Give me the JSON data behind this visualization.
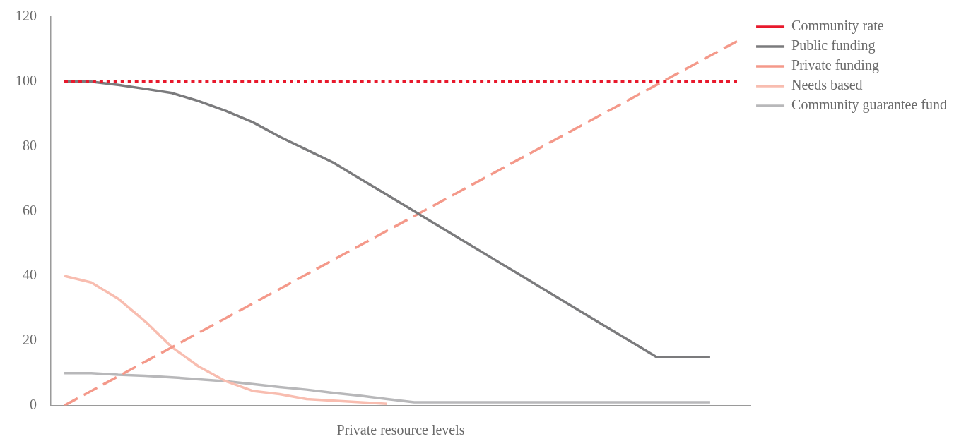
{
  "chart_data": {
    "type": "line",
    "xlabel": "Private resource levels",
    "categories": [
      null,
      null,
      null,
      null,
      null,
      null,
      null,
      null,
      null,
      null,
      null,
      null,
      null,
      null,
      null,
      null,
      null,
      null,
      null,
      null,
      null,
      null,
      null,
      null,
      null,
      null
    ],
    "ylim": [
      0,
      120
    ],
    "yticks": [
      0,
      20,
      40,
      60,
      80,
      100,
      120
    ],
    "grid": false,
    "legend": "top right",
    "marker": "none",
    "series": [
      {
        "name": "Community rate",
        "color": "#e8192c",
        "line_style": "dotted",
        "values": [
          100,
          100,
          100,
          100,
          100,
          100,
          100,
          100,
          100,
          100,
          100,
          100,
          100,
          100,
          100,
          100,
          100,
          100,
          100,
          100,
          100,
          100,
          100,
          100,
          100,
          100
        ]
      },
      {
        "name": "Public funding",
        "color": "#7b7b7d",
        "line_style": "solid",
        "values": [
          100,
          100,
          99,
          97.8,
          96.5,
          94,
          91,
          87.5,
          83,
          79,
          75,
          70,
          65,
          60,
          55,
          50,
          45,
          40,
          35,
          30,
          25,
          20,
          15,
          15,
          15,
          null
        ]
      },
      {
        "name": "Private funding",
        "color": "#f4998a",
        "line_style": "dashed",
        "values": [
          0,
          4.5,
          9,
          13.5,
          18,
          22.5,
          27,
          31.5,
          36,
          40.5,
          45,
          49.5,
          54,
          58.5,
          63,
          67.5,
          72,
          76.5,
          81,
          85.5,
          90,
          94.5,
          99,
          103.5,
          108,
          112.5
        ]
      },
      {
        "name": "Needs based",
        "color": "#f8bdb0",
        "line_style": "solid",
        "values": [
          40,
          38,
          33,
          26,
          18,
          12,
          7.5,
          4.5,
          3.5,
          2,
          1.5,
          1,
          0.5,
          null,
          null,
          null,
          null,
          null,
          null,
          null,
          null,
          null,
          null,
          null,
          null,
          null
        ]
      },
      {
        "name": "Community guarantee fund",
        "color": "#b8b8ba",
        "line_style": "solid",
        "values": [
          10,
          10,
          9.5,
          9.2,
          8.7,
          8.1,
          7.5,
          6.6,
          5.7,
          4.9,
          3.9,
          3,
          2,
          1,
          1,
          1,
          1,
          1,
          1,
          1,
          1,
          1,
          1,
          1,
          1,
          null
        ]
      }
    ]
  }
}
